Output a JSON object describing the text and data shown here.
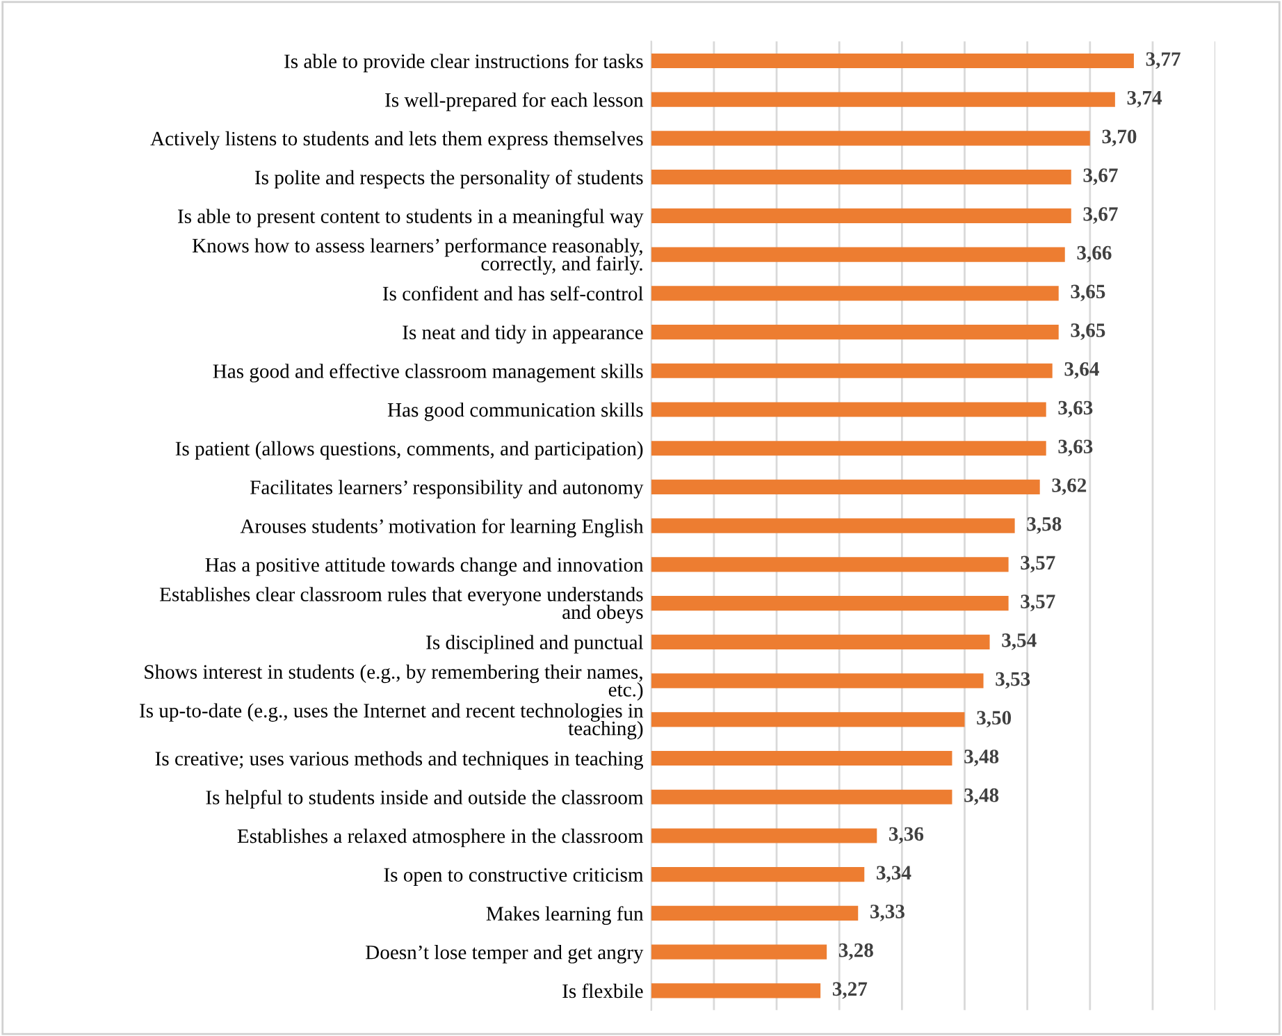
{
  "chart_data": {
    "type": "bar",
    "orientation": "horizontal",
    "categories": [
      "Is able to provide clear instructions for tasks",
      "Is well-prepared for each lesson",
      "Actively listens to students and lets them express themselves",
      "Is polite and respects the personality of students",
      "Is able to present content to students in a meaningful way",
      "Knows how to assess learners’ performance reasonably,\ncorrectly, and fairly.",
      "Is confident and has self-control",
      "Is neat and tidy in appearance",
      "Has good and effective classroom management skills",
      "Has good communication skills",
      "Is patient (allows questions, comments, and participation)",
      "Facilitates learners’ responsibility and autonomy",
      "Arouses students’ motivation for learning English",
      "Has a positive attitude towards change and innovation",
      "Establishes clear classroom rules that everyone understands\nand obeys",
      "Is disciplined and punctual",
      "Shows interest in students (e.g., by remembering their names,\netc.)",
      "Is up-to-date (e.g., uses the Internet and recent technologies in\nteaching)",
      "Is creative; uses various methods and techniques in teaching",
      "Is helpful to students inside and outside the classroom",
      "Establishes a relaxed atmosphere in the classroom",
      "Is open to constructive criticism",
      "Makes learning fun",
      "Doesn’t lose temper and get angry",
      "Is flexbile"
    ],
    "values": [
      3.77,
      3.74,
      3.7,
      3.67,
      3.67,
      3.66,
      3.65,
      3.65,
      3.64,
      3.63,
      3.63,
      3.62,
      3.58,
      3.57,
      3.57,
      3.54,
      3.53,
      3.5,
      3.48,
      3.48,
      3.36,
      3.34,
      3.33,
      3.28,
      3.27
    ],
    "value_labels": [
      "3,77",
      "3,74",
      "3,70",
      "3,67",
      "3,67",
      "3,66",
      "3,65",
      "3,65",
      "3,64",
      "3,63",
      "3,63",
      "3,62",
      "3,58",
      "3,57",
      "3,57",
      "3,54",
      "3,53",
      "3,50",
      "3,48",
      "3,48",
      "3,36",
      "3,34",
      "3,33",
      "3,28",
      "3,27"
    ],
    "color": "#ed7d31",
    "xlim": [
      3.0,
      3.9
    ],
    "xticks": [
      {
        "value": 3.0,
        "label": null
      },
      {
        "value": 3.1,
        "label": null
      },
      {
        "value": 3.2,
        "label": null
      },
      {
        "value": 3.3,
        "label": null
      },
      {
        "value": 3.4,
        "label": null
      },
      {
        "value": 3.5,
        "label": null
      },
      {
        "value": 3.6,
        "label": null
      },
      {
        "value": 3.7,
        "label": null
      },
      {
        "value": 3.8,
        "label": null
      },
      {
        "value": 3.9,
        "label": null
      }
    ],
    "grid": "x",
    "tick_labels": "y"
  }
}
